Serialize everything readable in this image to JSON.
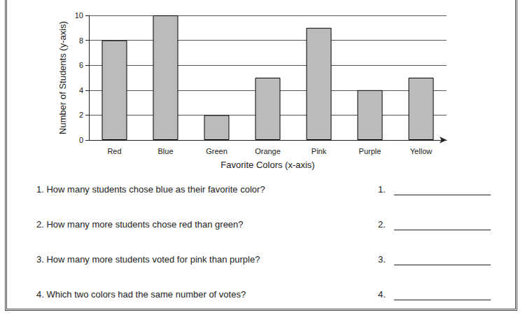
{
  "chart_data": {
    "type": "bar",
    "categories": [
      "Red",
      "Blue",
      "Green",
      "Orange",
      "Pink",
      "Purple",
      "Yellow"
    ],
    "values": [
      8,
      10,
      2,
      5,
      9,
      4,
      5
    ],
    "color": "#bbbbbb",
    "xlabel": "Favorite Colors (x-axis)",
    "ylabel": "Number of Students (y-axis)",
    "ylim": [
      0,
      10
    ],
    "yticks": [
      0,
      2,
      4,
      6,
      8,
      10
    ],
    "grid": true
  },
  "questions": [
    {
      "number": "1.",
      "text": "How many students chose blue as their favorite color?"
    },
    {
      "number": "2.",
      "text": "How many more students chose red than green?"
    },
    {
      "number": "3.",
      "text": "How many more students voted for pink than purple?"
    },
    {
      "number": "4.",
      "text": "Which two colors had the same number of votes?"
    }
  ]
}
